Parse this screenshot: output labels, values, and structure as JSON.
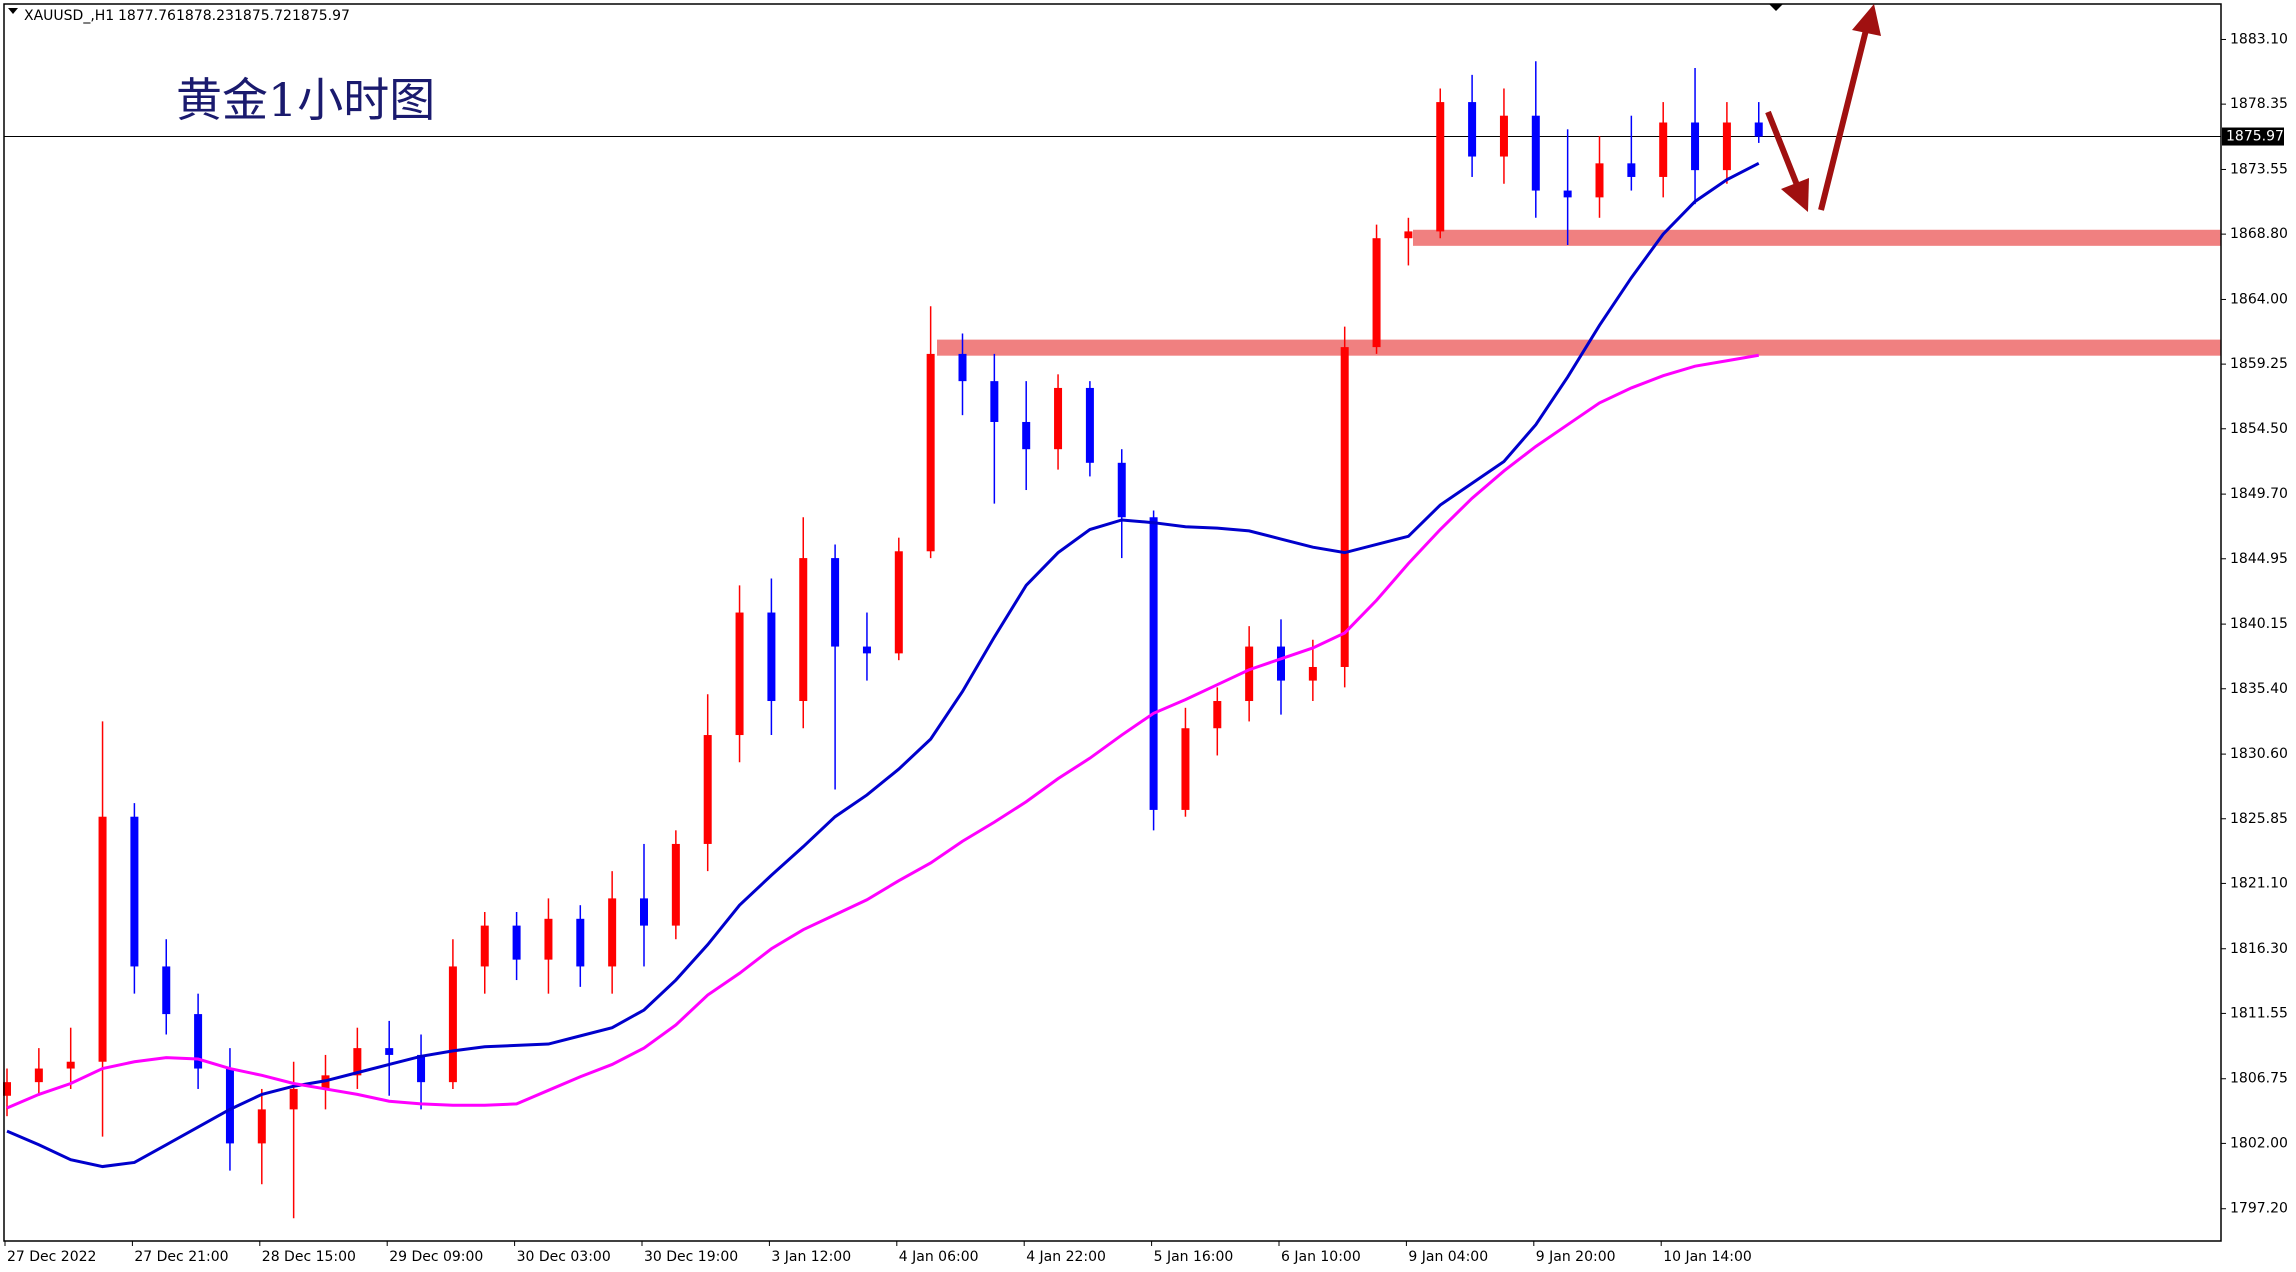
{
  "header": {
    "symbol": "XAUUSD_,H1",
    "ohlc": [
      1877.76,
      1878.23,
      1875.72,
      1875.97
    ]
  },
  "chart_data": {
    "type": "candlestick",
    "title": "黄金1小时图",
    "categories": [
      "27 Dec 2022",
      null,
      null,
      null,
      "27 Dec 21:00",
      null,
      null,
      null,
      "28 Dec 15:00",
      null,
      null,
      null,
      "29 Dec 09:00",
      null,
      null,
      null,
      "30 Dec 03:00",
      null,
      null,
      null,
      "30 Dec 19:00",
      null,
      null,
      null,
      "3 Jan 12:00",
      null,
      null,
      null,
      "4 Jan 06:00",
      null,
      null,
      null,
      "4 Jan 22:00",
      null,
      null,
      null,
      "5 Jan 16:00",
      null,
      null,
      null,
      "6 Jan 10:00",
      null,
      null,
      null,
      "9 Jan 04:00",
      null,
      null,
      null,
      "9 Jan 20:00",
      null,
      null,
      null,
      "10 Jan 14:00",
      null,
      null,
      null
    ],
    "open": [
      1805.5,
      1806.5,
      1807.5,
      1808.0,
      1826.0,
      1815.0,
      1811.5,
      1807.5,
      1802.0,
      1804.5,
      1806.0,
      1807.0,
      1809.0,
      1808.5,
      1806.5,
      1815.0,
      1818.0,
      1815.5,
      1818.5,
      1815.0,
      1820.0,
      1818.0,
      1824.0,
      1832.0,
      1841.0,
      1834.5,
      1845.0,
      1838.5,
      1838.0,
      1845.5,
      1860.0,
      1858.0,
      1855.0,
      1853.0,
      1857.5,
      1852.0,
      1848.0,
      1826.5,
      1832.5,
      1834.5,
      1838.5,
      1836.0,
      1837.0,
      1860.5,
      1868.5,
      1869.0,
      1878.5,
      1874.5,
      1877.5,
      1872.0,
      1871.5,
      1874.0,
      1873.0,
      1877.0,
      1873.5,
      1877.0
    ],
    "high": [
      1807.5,
      1809.0,
      1810.5,
      1833.0,
      1827.0,
      1817.0,
      1813.0,
      1809.0,
      1806.0,
      1808.0,
      1808.5,
      1810.5,
      1811.0,
      1810.0,
      1817.0,
      1819.0,
      1819.0,
      1820.0,
      1819.5,
      1822.0,
      1824.0,
      1825.0,
      1835.0,
      1843.0,
      1843.5,
      1848.0,
      1846.0,
      1841.0,
      1846.5,
      1863.5,
      1861.5,
      1860.0,
      1858.0,
      1858.5,
      1858.0,
      1853.0,
      1848.5,
      1834.0,
      1835.5,
      1840.0,
      1840.5,
      1839.0,
      1862.0,
      1869.5,
      1870.0,
      1879.5,
      1880.5,
      1879.5,
      1881.5,
      1876.5,
      1876.0,
      1877.5,
      1878.5,
      1881.0,
      1878.5,
      1878.5
    ],
    "low": [
      1804.0,
      1805.5,
      1806.0,
      1802.5,
      1813.0,
      1810.0,
      1806.0,
      1800.0,
      1799.0,
      1796.5,
      1804.5,
      1806.0,
      1805.5,
      1804.5,
      1806.0,
      1813.0,
      1814.0,
      1813.0,
      1813.5,
      1813.0,
      1815.0,
      1817.0,
      1822.0,
      1830.0,
      1832.0,
      1832.5,
      1828.0,
      1836.0,
      1837.5,
      1845.0,
      1855.5,
      1849.0,
      1850.0,
      1851.5,
      1851.0,
      1845.0,
      1825.0,
      1826.0,
      1830.5,
      1833.0,
      1833.5,
      1834.5,
      1835.5,
      1860.0,
      1866.5,
      1868.5,
      1873.0,
      1872.5,
      1870.0,
      1868.0,
      1870.0,
      1872.0,
      1871.5,
      1871.0,
      1872.5,
      1875.5
    ],
    "close": [
      1806.5,
      1807.5,
      1808.0,
      1826.0,
      1815.0,
      1811.5,
      1807.5,
      1802.0,
      1804.5,
      1806.0,
      1807.0,
      1809.0,
      1808.5,
      1806.5,
      1815.0,
      1818.0,
      1815.5,
      1818.5,
      1815.0,
      1820.0,
      1818.0,
      1824.0,
      1832.0,
      1841.0,
      1834.5,
      1845.0,
      1838.5,
      1838.0,
      1845.5,
      1860.0,
      1858.0,
      1855.0,
      1853.0,
      1857.5,
      1852.0,
      1848.0,
      1826.5,
      1832.5,
      1834.5,
      1838.5,
      1836.0,
      1837.0,
      1860.5,
      1868.5,
      1869.0,
      1878.5,
      1874.5,
      1877.5,
      1872.0,
      1871.5,
      1874.0,
      1873.0,
      1877.0,
      1873.5,
      1877.0,
      1875.97
    ],
    "up_color": "#ff0000",
    "down_color": "#0000ff",
    "lines": [
      {
        "color": "#0000cc",
        "values": [
          1802.9,
          1801.9,
          1800.8,
          1800.3,
          1800.6,
          1801.9,
          1803.2,
          1804.5,
          1805.6,
          1806.2,
          1806.6,
          1807.2,
          1807.8,
          1808.4,
          1808.8,
          1809.1,
          1809.2,
          1809.3,
          1809.9,
          1810.5,
          1811.8,
          1814.0,
          1816.6,
          1819.5,
          1821.7,
          1823.8,
          1826.0,
          1827.6,
          1829.5,
          1831.7,
          1835.2,
          1839.2,
          1843.0,
          1845.4,
          1847.1,
          1847.8,
          1847.6,
          1847.3,
          1847.2,
          1847.0,
          1846.4,
          1845.8,
          1845.4,
          1846.0,
          1846.6,
          1848.9,
          1850.5,
          1852.1,
          1854.8,
          1858.3,
          1862.1,
          1865.6,
          1868.8,
          1871.2,
          1872.8,
          1874.0
        ]
      },
      {
        "color": "#ff00ff",
        "values": [
          1804.6,
          1805.6,
          1806.4,
          1807.5,
          1808.0,
          1808.3,
          1808.2,
          1807.5,
          1807.0,
          1806.4,
          1806.0,
          1805.6,
          1805.1,
          1804.9,
          1804.8,
          1804.8,
          1804.9,
          1805.9,
          1806.9,
          1807.8,
          1809.0,
          1810.7,
          1812.9,
          1814.5,
          1816.3,
          1817.7,
          1818.8,
          1819.9,
          1821.3,
          1822.6,
          1824.2,
          1825.6,
          1827.1,
          1828.8,
          1830.3,
          1832.0,
          1833.6,
          1834.6,
          1835.7,
          1836.8,
          1837.6,
          1838.4,
          1839.5,
          1841.9,
          1844.6,
          1847.1,
          1849.4,
          1851.4,
          1853.2,
          1854.8,
          1856.4,
          1857.5,
          1858.4,
          1859.1,
          1859.5,
          1859.9
        ]
      }
    ],
    "zones": [
      {
        "from": 1867.94,
        "to": 1869.12,
        "color": "#f08080"
      },
      {
        "from": 1859.87,
        "to": 1861.05,
        "color": "#f08080"
      }
    ],
    "current_price": 1875.97,
    "ylim": [
      1794.83,
      1886.0
    ],
    "yticks": [
      {
        "value": 1883.1,
        "label": "1883.10"
      },
      1878.35,
      1873.55,
      {
        "value": 1868.8,
        "label": "1868.80"
      },
      {
        "value": 1864,
        "label": "1864.00"
      },
      1859.25,
      {
        "value": 1854.5,
        "label": "1854.50"
      },
      {
        "value": 1849.7,
        "label": "1849.70"
      },
      1844.95,
      1840.15,
      {
        "value": 1835.4,
        "label": "1835.40"
      },
      {
        "value": 1830.6,
        "label": "1830.60"
      },
      1825.85,
      {
        "value": 1821.1,
        "label": "1821.10"
      },
      {
        "value": 1816.3,
        "label": "1816.30"
      },
      1811.55,
      1806.75,
      {
        "value": 1802,
        "label": "1802.00"
      },
      {
        "value": 1797.2,
        "label": "1797.20"
      }
    ]
  }
}
